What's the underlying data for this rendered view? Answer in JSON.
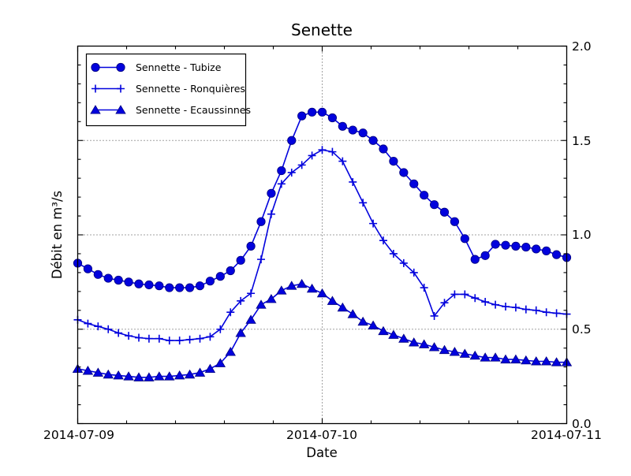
{
  "chart_data": {
    "type": "line",
    "title": "Senette",
    "xlabel": "Date",
    "ylabel": "Débit en m³/s",
    "background_color": "#ffffff",
    "frame_color": "#000000",
    "grid": {
      "visible": true,
      "style": "dotted",
      "color": "#444444"
    },
    "x_axis": {
      "tick_labels": [
        "2014-07-09",
        "2014-07-10",
        "2014-07-11"
      ],
      "tick_hours": [
        0,
        24,
        48
      ],
      "unit": "hours from 2014-07-09 00:00",
      "hours_span": 48,
      "minor_subintervals": 5
    },
    "y_axis": {
      "tick_labels": [
        "0.0",
        "0.5",
        "1.0",
        "1.5",
        "2.0"
      ],
      "tick_values": [
        0.0,
        0.5,
        1.0,
        1.5,
        2.0
      ],
      "ylim": [
        0.0,
        2.0
      ],
      "minor_step": 0.1,
      "labels_side": "right"
    },
    "legend": {
      "position": "upper-left"
    },
    "marker_edge_color": "#000080",
    "series": [
      {
        "name": "Sennette - Tubize",
        "marker": "circle",
        "color": "#0202dd",
        "values": [
          0.85,
          0.82,
          0.79,
          0.77,
          0.76,
          0.75,
          0.74,
          0.735,
          0.73,
          0.72,
          0.72,
          0.72,
          0.73,
          0.755,
          0.78,
          0.81,
          0.865,
          0.94,
          1.07,
          1.22,
          1.34,
          1.5,
          1.63,
          1.65,
          1.65,
          1.62,
          1.575,
          1.555,
          1.54,
          1.5,
          1.455,
          1.39,
          1.33,
          1.27,
          1.21,
          1.16,
          1.12,
          1.07,
          0.98,
          0.87,
          0.89,
          0.95,
          0.945,
          0.94,
          0.935,
          0.925,
          0.915,
          0.895,
          0.88
        ]
      },
      {
        "name": "Sennette - Ronquières",
        "marker": "plus",
        "color": "#0202dd",
        "values": [
          0.55,
          0.53,
          0.515,
          0.5,
          0.48,
          0.465,
          0.455,
          0.45,
          0.45,
          0.44,
          0.44,
          0.445,
          0.45,
          0.46,
          0.5,
          0.59,
          0.65,
          0.69,
          0.87,
          1.11,
          1.27,
          1.33,
          1.37,
          1.42,
          1.45,
          1.44,
          1.39,
          1.28,
          1.17,
          1.06,
          0.97,
          0.9,
          0.85,
          0.8,
          0.72,
          0.57,
          0.64,
          0.685,
          0.685,
          0.665,
          0.645,
          0.63,
          0.62,
          0.615,
          0.605,
          0.6,
          0.59,
          0.585,
          0.58
        ]
      },
      {
        "name": "Sennette - Ecaussinnes",
        "marker": "triangle",
        "color": "#0202dd",
        "values": [
          0.29,
          0.28,
          0.27,
          0.26,
          0.255,
          0.25,
          0.245,
          0.245,
          0.25,
          0.25,
          0.255,
          0.26,
          0.27,
          0.29,
          0.32,
          0.38,
          0.48,
          0.55,
          0.63,
          0.66,
          0.705,
          0.73,
          0.74,
          0.715,
          0.69,
          0.65,
          0.615,
          0.58,
          0.54,
          0.52,
          0.49,
          0.47,
          0.45,
          0.43,
          0.42,
          0.405,
          0.39,
          0.38,
          0.37,
          0.36,
          0.35,
          0.35,
          0.34,
          0.34,
          0.335,
          0.33,
          0.33,
          0.325,
          0.325
        ]
      }
    ]
  }
}
